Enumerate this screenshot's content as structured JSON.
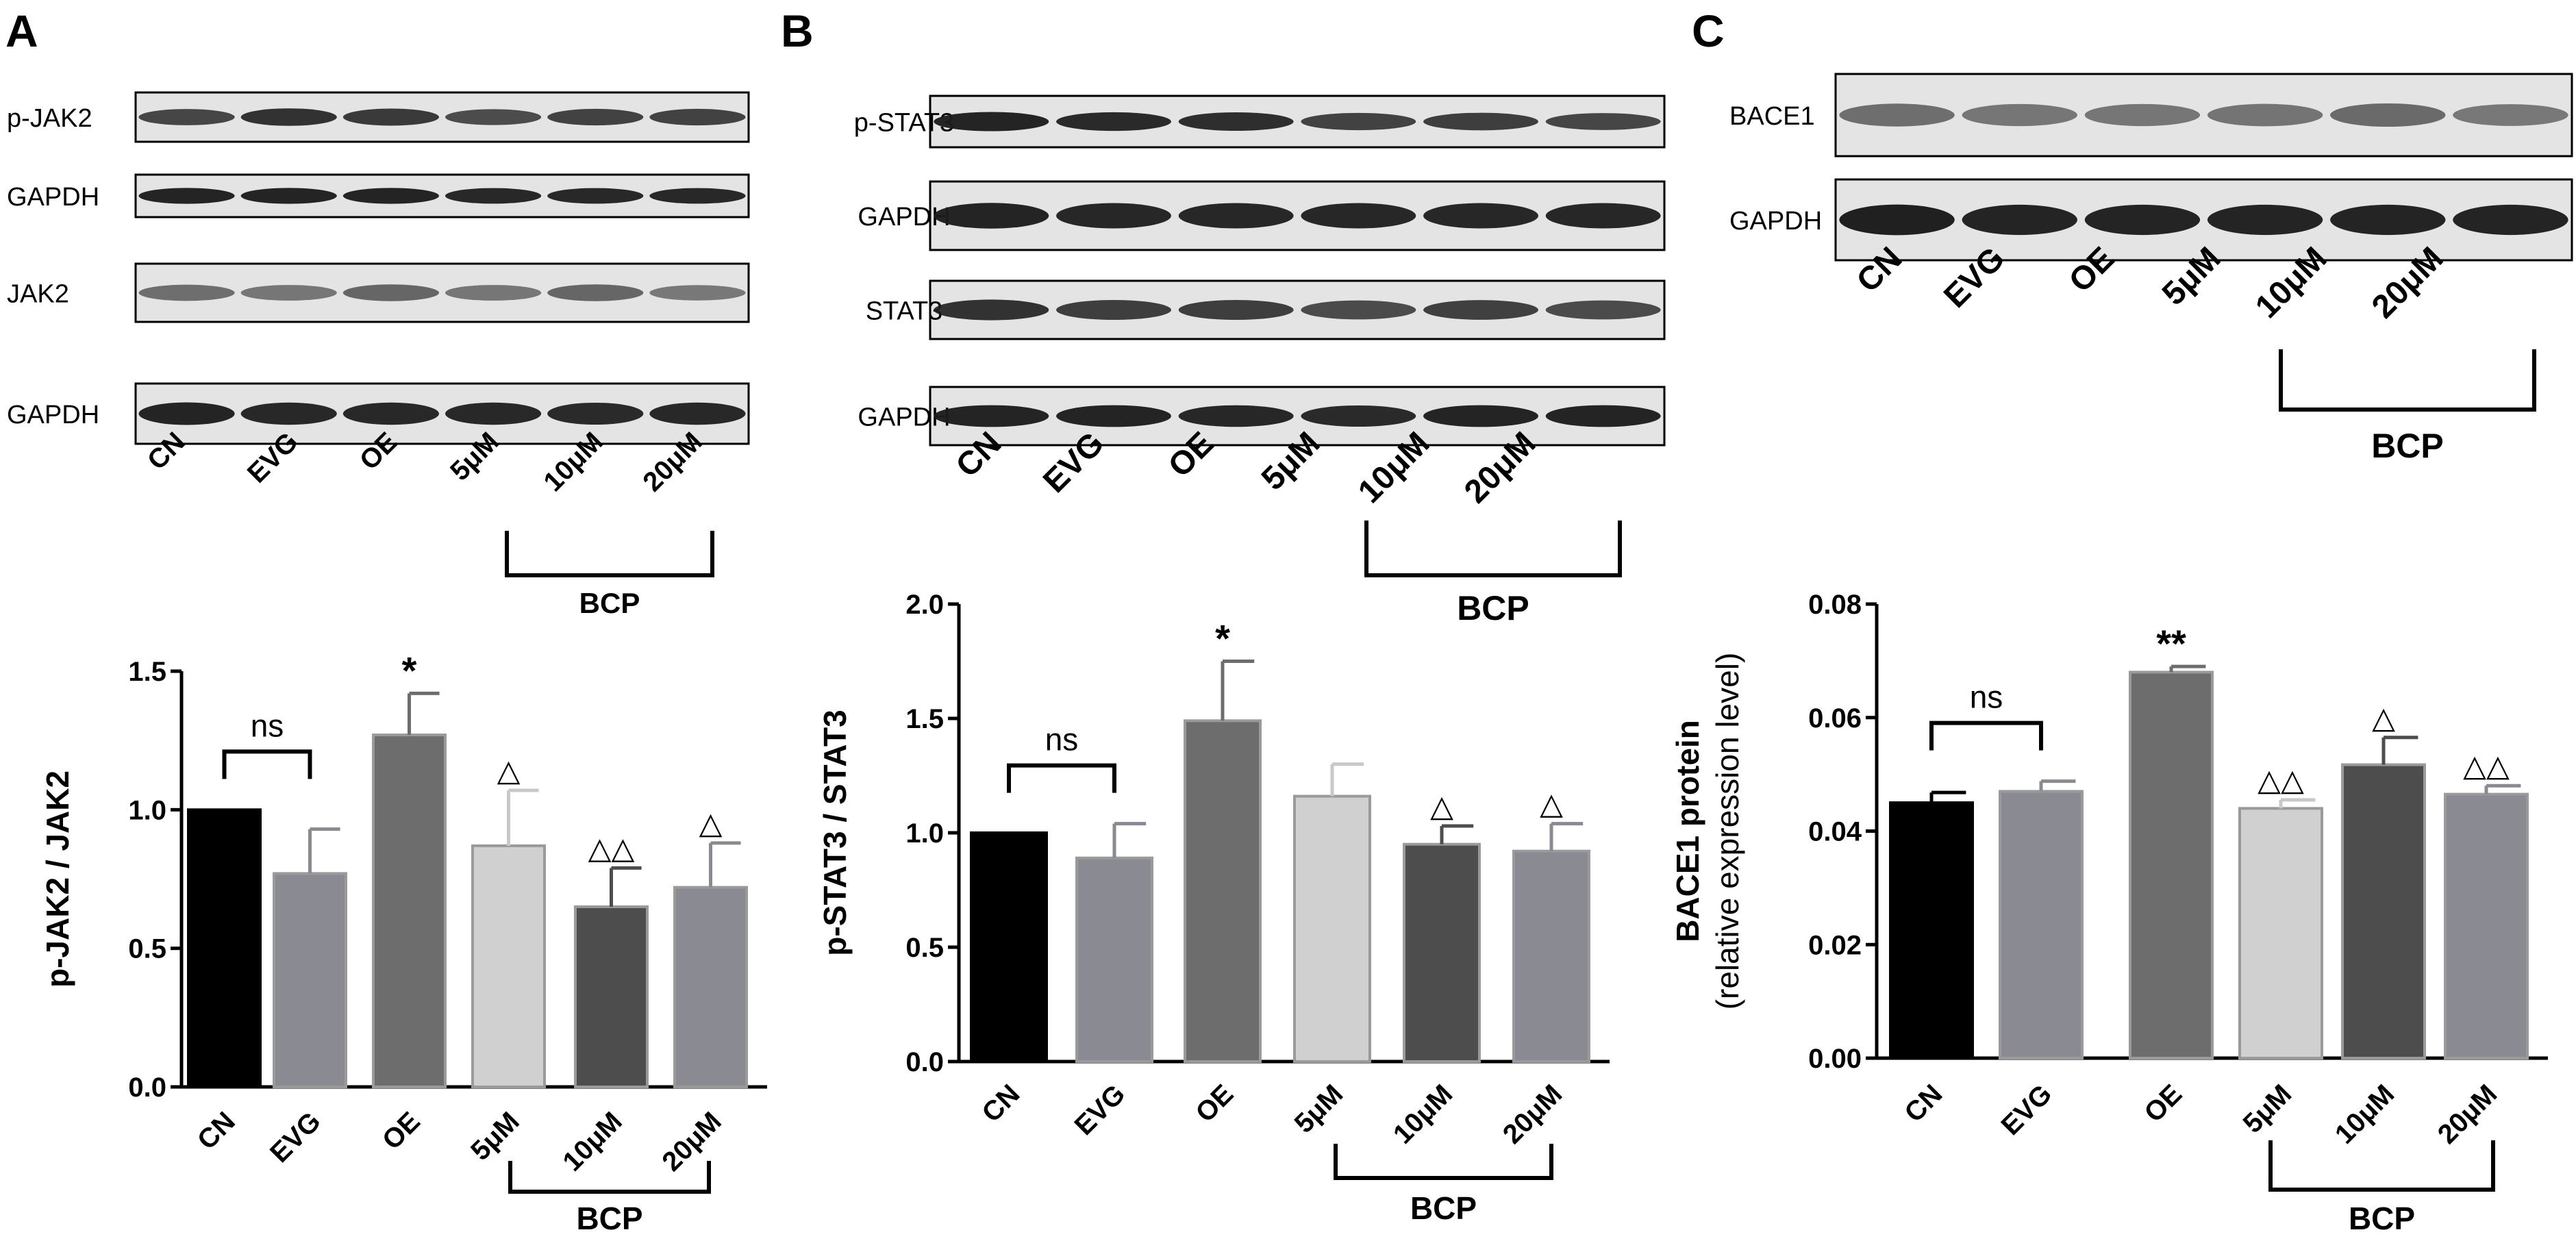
{
  "panel_letters": [
    "A",
    "B",
    "C"
  ],
  "colors": {
    "bar_fills": [
      "#000000",
      "#8a8a92",
      "#6d6d6d",
      "#d0d0d0",
      "#4d4d4d",
      "#8a8a92"
    ],
    "blot_bg": "#e4e4e4",
    "band": "#1c1c1c"
  },
  "lane_labels": [
    "CN",
    "EVG",
    "OE",
    "5μM",
    "10μM",
    "20μM"
  ],
  "group_label": "BCP",
  "blots": [
    {
      "panel": "A",
      "rows": [
        {
          "label": "p-JAK2",
          "band_strength": [
            0.72,
            0.85,
            0.8,
            0.68,
            0.75,
            0.75
          ]
        },
        {
          "label": "GAPDH",
          "band_strength": [
            0.95,
            0.95,
            0.95,
            0.92,
            0.92,
            0.92
          ]
        },
        {
          "label": "JAK2",
          "band_strength": [
            0.45,
            0.4,
            0.5,
            0.4,
            0.5,
            0.38
          ]
        },
        {
          "label": "GAPDH",
          "band_strength": [
            0.95,
            0.92,
            0.92,
            0.92,
            0.9,
            0.92
          ]
        }
      ]
    },
    {
      "panel": "B",
      "rows": [
        {
          "label": "p-STAT3",
          "band_strength": [
            0.95,
            0.9,
            0.88,
            0.75,
            0.78,
            0.72
          ]
        },
        {
          "label": "GAPDH",
          "band_strength": [
            0.95,
            0.93,
            0.93,
            0.93,
            0.93,
            0.93
          ]
        },
        {
          "label": "STAT3",
          "band_strength": [
            0.85,
            0.78,
            0.78,
            0.7,
            0.76,
            0.7
          ]
        },
        {
          "label": "GAPDH",
          "band_strength": [
            0.95,
            0.95,
            0.93,
            0.9,
            0.95,
            0.95
          ]
        }
      ]
    },
    {
      "panel": "C",
      "rows": [
        {
          "label": "BACE1",
          "band_strength": [
            0.45,
            0.4,
            0.4,
            0.42,
            0.48,
            0.38
          ]
        },
        {
          "label": "GAPDH",
          "band_strength": [
            0.97,
            0.95,
            0.95,
            0.95,
            0.95,
            0.95
          ]
        }
      ]
    }
  ],
  "chart_data": [
    {
      "type": "bar",
      "panel": "A",
      "categories": [
        "CN",
        "EVG",
        "OE",
        "5μM",
        "10μM",
        "20μM"
      ],
      "values": [
        1.0,
        0.77,
        1.27,
        0.87,
        0.65,
        0.72
      ],
      "errors": [
        0,
        0.16,
        0.15,
        0.2,
        0.14,
        0.16
      ],
      "annotations": [
        "",
        "",
        "*",
        "△",
        "△△",
        "△"
      ],
      "ns_label": "ns",
      "ylabel": "p-JAK2 / JAK2",
      "ylim": [
        0.0,
        1.5
      ],
      "yticks": [
        "0.0",
        "0.5",
        "1.0",
        "1.5"
      ],
      "group_label": "BCP"
    },
    {
      "type": "bar",
      "panel": "B",
      "categories": [
        "CN",
        "EVG",
        "OE",
        "5μM",
        "10μM",
        "20μM"
      ],
      "values": [
        1.0,
        0.89,
        1.49,
        1.16,
        0.95,
        0.92
      ],
      "errors": [
        0,
        0.15,
        0.26,
        0.14,
        0.08,
        0.12
      ],
      "annotations": [
        "",
        "",
        "*",
        "",
        "△",
        "△"
      ],
      "ns_label": "ns",
      "ylabel": "p-STAT3 / STAT3",
      "ylim": [
        0.0,
        2.0
      ],
      "yticks": [
        "0.0",
        "0.5",
        "1.0",
        "1.5",
        "2.0"
      ],
      "group_label": "BCP"
    },
    {
      "type": "bar",
      "panel": "C",
      "categories": [
        "CN",
        "EVG",
        "OE",
        "5μM",
        "10μM",
        "20μM"
      ],
      "values": [
        0.045,
        0.047,
        0.068,
        0.044,
        0.0517,
        0.0465
      ],
      "errors": [
        0.0018,
        0.0018,
        0.001,
        0.0015,
        0.0048,
        0.0015
      ],
      "annotations": [
        "",
        "",
        "**",
        "△△",
        "△",
        "△△"
      ],
      "ns_label": "ns",
      "ylabel": "BACE1 protein",
      "ylabel2": "(relative expression level)",
      "ylim": [
        0.0,
        0.08
      ],
      "yticks": [
        "0.00",
        "0.02",
        "0.04",
        "0.06",
        "0.08"
      ],
      "group_label": "BCP"
    }
  ]
}
